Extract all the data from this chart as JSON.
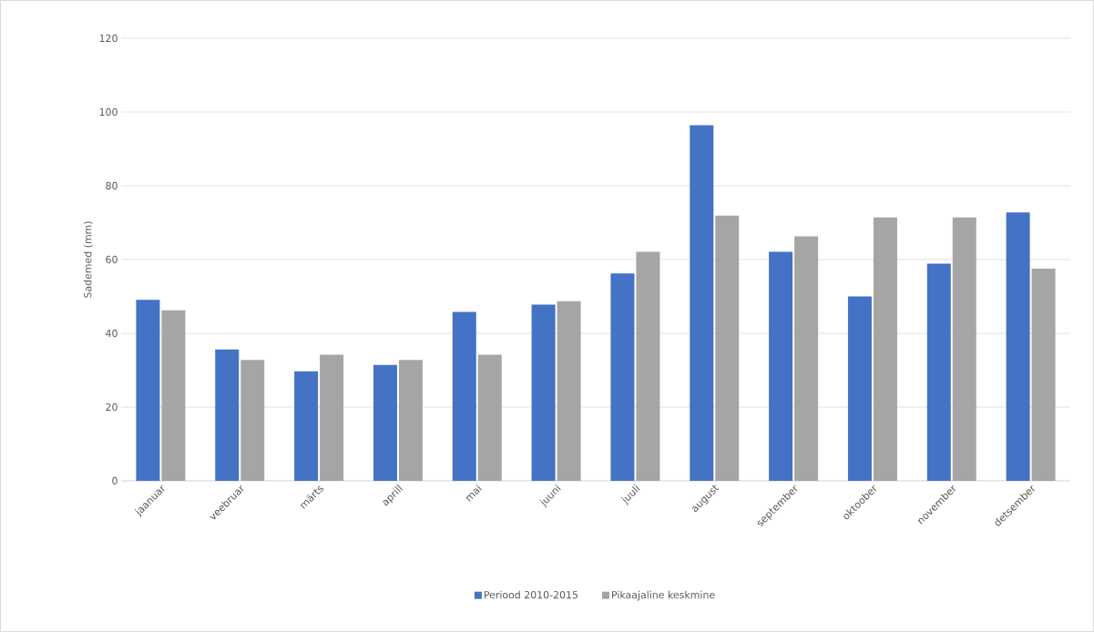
{
  "chart_data": {
    "type": "bar",
    "ylabel": "Sademed (mm)",
    "categories": [
      "jaanuar",
      "veebruar",
      "märts",
      "aprill",
      "mai",
      "juuni",
      "juuli",
      "august",
      "september",
      "oktoober",
      "november",
      "detsember"
    ],
    "series": [
      {
        "name": "Periood 2010-2015",
        "color": "#4472c4",
        "values": [
          49.1,
          35.6,
          29.7,
          31.4,
          45.8,
          47.8,
          56.2,
          96.4,
          62.1,
          50.0,
          58.9,
          72.8
        ]
      },
      {
        "name": "Pikaajaline keskmine",
        "color": "#a5a5a5",
        "values": [
          46.2,
          32.8,
          34.2,
          32.8,
          34.2,
          48.7,
          62.1,
          71.9,
          66.3,
          71.4,
          71.4,
          57.5
        ]
      }
    ],
    "ylim": [
      0,
      120
    ],
    "yticks": [
      0,
      20,
      40,
      60,
      80,
      100,
      120
    ],
    "grid": "y",
    "legend": "bottom"
  }
}
